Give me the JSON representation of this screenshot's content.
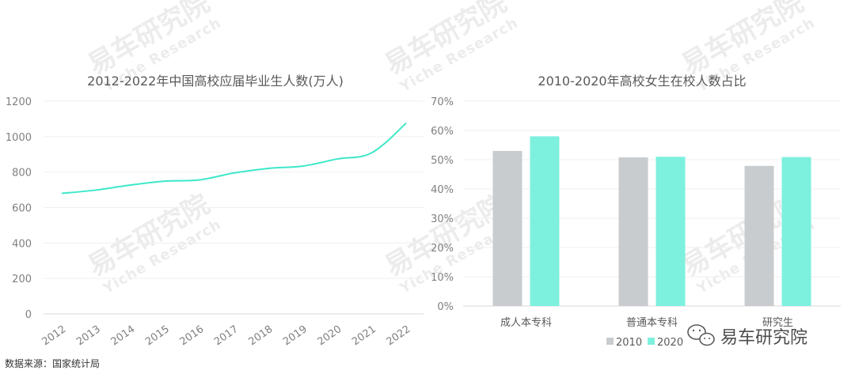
{
  "chart_data": [
    {
      "type": "line",
      "title": "2012-2022年中国高校应届毕业生人数(万人)",
      "x": [
        "2012",
        "2013",
        "2014",
        "2015",
        "2016",
        "2017",
        "2018",
        "2019",
        "2020",
        "2021",
        "2022"
      ],
      "series": [
        {
          "values": [
            680,
            699,
            727,
            749,
            756,
            795,
            821,
            834,
            874,
            909,
            1076
          ]
        }
      ],
      "yticks": [
        "0",
        "200",
        "400",
        "600",
        "800",
        "1000",
        "1200"
      ],
      "ylim": [
        0,
        1200
      ],
      "color": "#3de8c8",
      "grid": true
    },
    {
      "type": "bar",
      "title": "2010-2020年高校女生在校人数占比",
      "categories": [
        "成人本专科",
        "普通本专科",
        "研究生"
      ],
      "series": [
        {
          "name": "2010",
          "values": [
            53,
            50.8,
            47.9
          ],
          "color": "#c9cccf"
        },
        {
          "name": "2020",
          "values": [
            58,
            51,
            50.9
          ],
          "color": "#7ef0de"
        }
      ],
      "yticks": [
        "0%",
        "10%",
        "20%",
        "30%",
        "40%",
        "50%",
        "60%",
        "70%"
      ],
      "ylim": [
        0,
        70
      ],
      "legend": "bottom-right",
      "grid": true
    }
  ],
  "source": "数据来源：国家统计局",
  "watermark": {
    "cn": "易车研究院",
    "en": "Yiche Research"
  },
  "logo": {
    "text": "易车研究院",
    "icon": "wechat-icon"
  }
}
